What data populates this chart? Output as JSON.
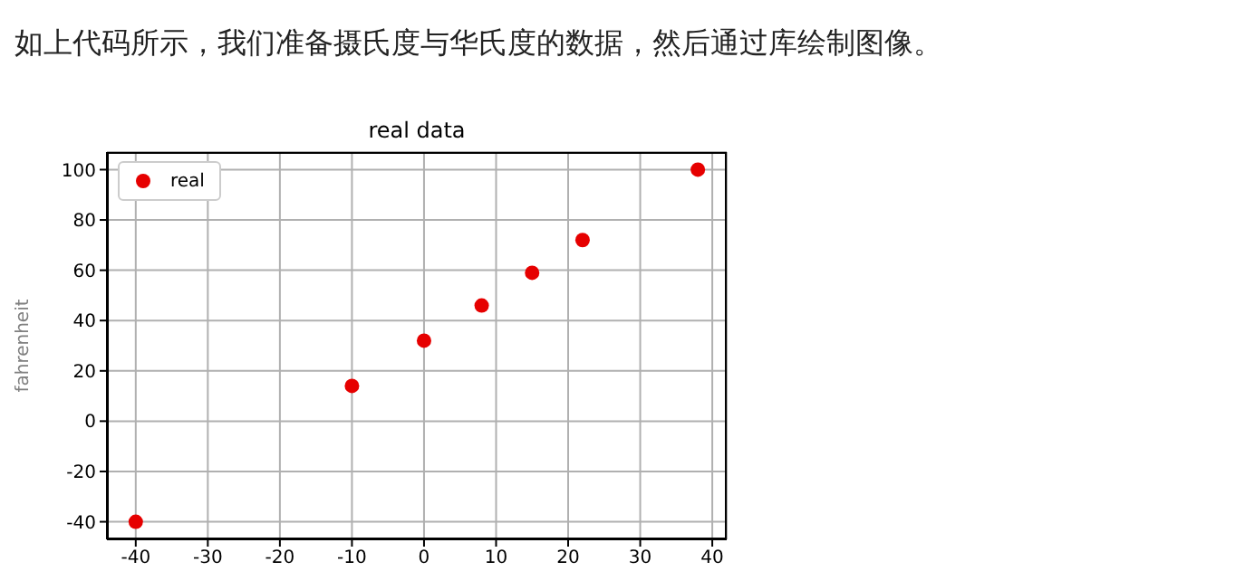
{
  "chart_data": {
    "type": "scatter",
    "title": "real data",
    "ylabel": "fahrenheit",
    "annotations": [
      "如上代码所示，我们准备摄氏度与华氏度的数据，然后通过库绘制图像。"
    ],
    "x": [
      -40,
      -10,
      0,
      8,
      15,
      22,
      38
    ],
    "series": [
      {
        "name": "real",
        "color": "#e60000",
        "values": [
          -40,
          14,
          32,
          46,
          59,
          72,
          100
        ]
      }
    ],
    "xlim": [
      -44,
      42
    ],
    "xticks": [
      -40,
      -30,
      -20,
      -10,
      0,
      10,
      20,
      30,
      40
    ],
    "ylim": [
      -47,
      107
    ],
    "yticks": [
      -40,
      -20,
      0,
      20,
      40,
      60,
      80,
      100
    ],
    "grid": true,
    "legend": "top left",
    "marker": "circle"
  }
}
